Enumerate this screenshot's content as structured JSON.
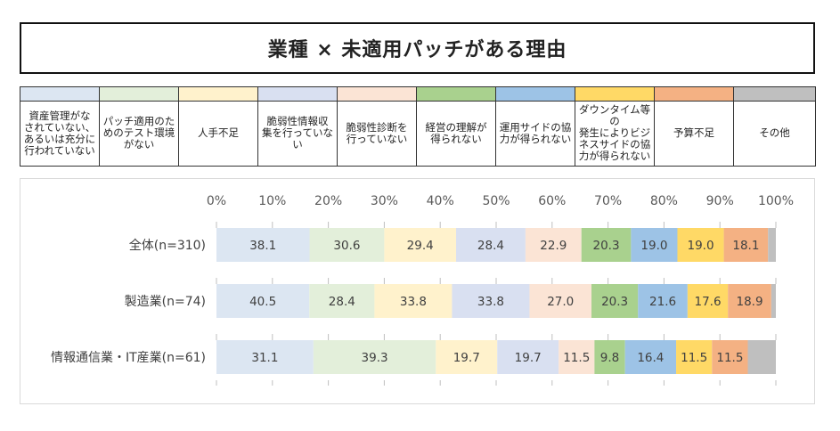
{
  "title": "業種 × 未適用パッチがある理由",
  "chart_data": {
    "type": "bar",
    "orientation": "horizontal",
    "stacked": "percent",
    "x_ticks": [
      "0%",
      "10%",
      "20%",
      "30%",
      "40%",
      "50%",
      "60%",
      "70%",
      "80%",
      "90%",
      "100%"
    ],
    "xlim": [
      0,
      100
    ],
    "categories": [
      "全体(n=310)",
      "製造業(n=74)",
      "情報通信業・IT産業(n=61)"
    ],
    "series": [
      {
        "name": "資産管理がなされていない、あるいは充分に行われていない",
        "color": "#dce6f2",
        "values": [
          38.1,
          40.5,
          31.1
        ],
        "labels": [
          "38.1",
          "40.5",
          "31.1"
        ]
      },
      {
        "name": "パッチ適用のためのテスト環境がない",
        "color": "#e3efda",
        "values": [
          30.6,
          28.4,
          39.3
        ],
        "labels": [
          "30.6",
          "28.4",
          "39.3"
        ]
      },
      {
        "name": "人手不足",
        "color": "#fff2cc",
        "values": [
          29.4,
          33.8,
          19.7
        ],
        "labels": [
          "29.4",
          "33.8",
          "19.7"
        ]
      },
      {
        "name": "脆弱性情報収集を行っていない",
        "color": "#d9e0f1",
        "values": [
          28.4,
          33.8,
          19.7
        ],
        "labels": [
          "28.4",
          "33.8",
          "19.7"
        ]
      },
      {
        "name": "脆弱性診断を行っていない",
        "color": "#fbe4d5",
        "values": [
          22.9,
          27.0,
          11.5
        ],
        "labels": [
          "22.9",
          "27.0",
          "11.5"
        ]
      },
      {
        "name": "経営の理解が得られない",
        "color": "#a9d18e",
        "values": [
          20.3,
          20.3,
          9.8
        ],
        "labels": [
          "20.3",
          "20.3",
          "9.8"
        ]
      },
      {
        "name": "運用サイドの協力が得られない",
        "color": "#9dc3e6",
        "values": [
          19.0,
          21.6,
          16.4
        ],
        "labels": [
          "19.0",
          "21.6",
          "16.4"
        ]
      },
      {
        "name": "ダウンタイム等の発生によりビジネスサイドの協力が得られない",
        "color": "#ffd966",
        "values": [
          19.0,
          17.6,
          11.5
        ],
        "labels": [
          "19.0",
          "17.6",
          "11.5"
        ]
      },
      {
        "name": "予算不足",
        "color": "#f4b183",
        "values": [
          18.1,
          18.9,
          11.5
        ],
        "labels": [
          "18.1",
          "18.9",
          "11.5"
        ]
      },
      {
        "name": "その他",
        "color": "#bfbfbf",
        "values": [
          3.2,
          2.0,
          9.0
        ],
        "labels": [
          "",
          "",
          ""
        ]
      }
    ]
  },
  "legend": [
    {
      "label": "資産管理がな\nされていない、\nあるいは充分に\n行われていない"
    },
    {
      "label": "パッチ適用のた\nめのテスト環境\nがない"
    },
    {
      "label": "人手不足"
    },
    {
      "label": "脆弱性情報収\n集を行っていな\nい"
    },
    {
      "label": "脆弱性診断を\n行っていない"
    },
    {
      "label": "経営の理解が\n得られない"
    },
    {
      "label": "運用サイドの協\n力が得られない"
    },
    {
      "label": "ダウンタイム等の\n発生によりビジ\nネスサイドの協\n力が得られない"
    },
    {
      "label": "予算不足"
    },
    {
      "label": "その他"
    }
  ]
}
